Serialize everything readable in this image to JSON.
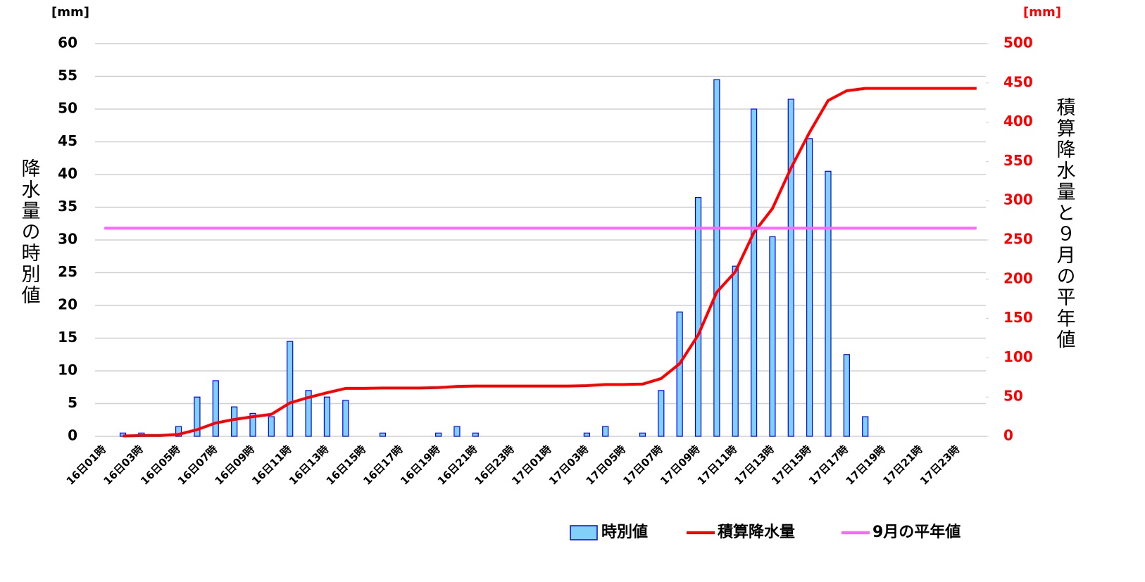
{
  "chart_data": {
    "type": "bar",
    "y_unit": "[mm]",
    "y2_unit": "[mm]",
    "ylabel": "降水量の時別値",
    "y2label": "積算降水量と９月の平年値",
    "categories": [
      "16日01時",
      null,
      "16日03時",
      null,
      "16日05時",
      null,
      "16日07時",
      null,
      "16日09時",
      null,
      "16日11時",
      null,
      "16日13時",
      null,
      "16日15時",
      null,
      "16日17時",
      null,
      "16日19時",
      null,
      "16日21時",
      null,
      "16日23時",
      null,
      "17日01時",
      null,
      "17日03時",
      null,
      "17日05時",
      null,
      "17日07時",
      null,
      "17日09時",
      null,
      "17日11時",
      null,
      "17日13時",
      null,
      "17日15時",
      null,
      "17日17時",
      null,
      "17日19時",
      null,
      "17日21時",
      null,
      "17日23時",
      null
    ],
    "series": [
      {
        "name": "時別値",
        "type": "bar",
        "color": "#80d0f8",
        "edge_color": "#0000ff",
        "values": [
          null,
          0.5,
          0.5,
          0,
          1.5,
          6,
          8.5,
          4.5,
          3.5,
          3,
          14.5,
          7,
          6,
          5.5,
          0,
          0.5,
          0,
          0,
          0.5,
          1.5,
          0.5,
          0,
          0,
          0,
          0,
          0,
          0.5,
          1.5,
          0,
          0.5,
          7,
          19,
          36.5,
          54.5,
          26,
          50,
          30.5,
          51.5,
          45.5,
          40.5,
          12.5,
          3,
          0,
          0,
          0,
          0,
          0,
          0
        ]
      },
      {
        "name": "積算降水量",
        "type": "line",
        "axis": "y2",
        "color": "#ff0000",
        "values": [
          null,
          0.5,
          1,
          1,
          2.5,
          8.5,
          17,
          21.5,
          25,
          28,
          42.5,
          49.5,
          55.5,
          61,
          61,
          61.5,
          61.5,
          61.5,
          62,
          63.5,
          64,
          64,
          64,
          64,
          64,
          64,
          64.5,
          66,
          66,
          66.5,
          73.5,
          92.5,
          129,
          183.5,
          209.5,
          259.5,
          290,
          341.5,
          387,
          427.5,
          440,
          443,
          443,
          443,
          443,
          443,
          443,
          443
        ]
      },
      {
        "name": "9月の平年値",
        "type": "line",
        "axis": "y2",
        "color": "#ff66ff",
        "values": [
          265,
          265,
          265,
          265,
          265,
          265,
          265,
          265,
          265,
          265,
          265,
          265,
          265,
          265,
          265,
          265,
          265,
          265,
          265,
          265,
          265,
          265,
          265,
          265,
          265,
          265,
          265,
          265,
          265,
          265,
          265,
          265,
          265,
          265,
          265,
          265,
          265,
          265,
          265,
          265,
          265,
          265,
          265,
          265,
          265,
          265,
          265,
          265
        ]
      }
    ],
    "ylim": [
      0,
      60
    ],
    "yticks": [
      0,
      5,
      10,
      15,
      20,
      25,
      30,
      35,
      40,
      45,
      50,
      55,
      60
    ],
    "y2lim": [
      0,
      500
    ],
    "y2ticks": [
      0,
      50,
      100,
      150,
      200,
      250,
      300,
      350,
      400,
      450,
      500
    ],
    "grid": true,
    "legend": "bottom"
  }
}
